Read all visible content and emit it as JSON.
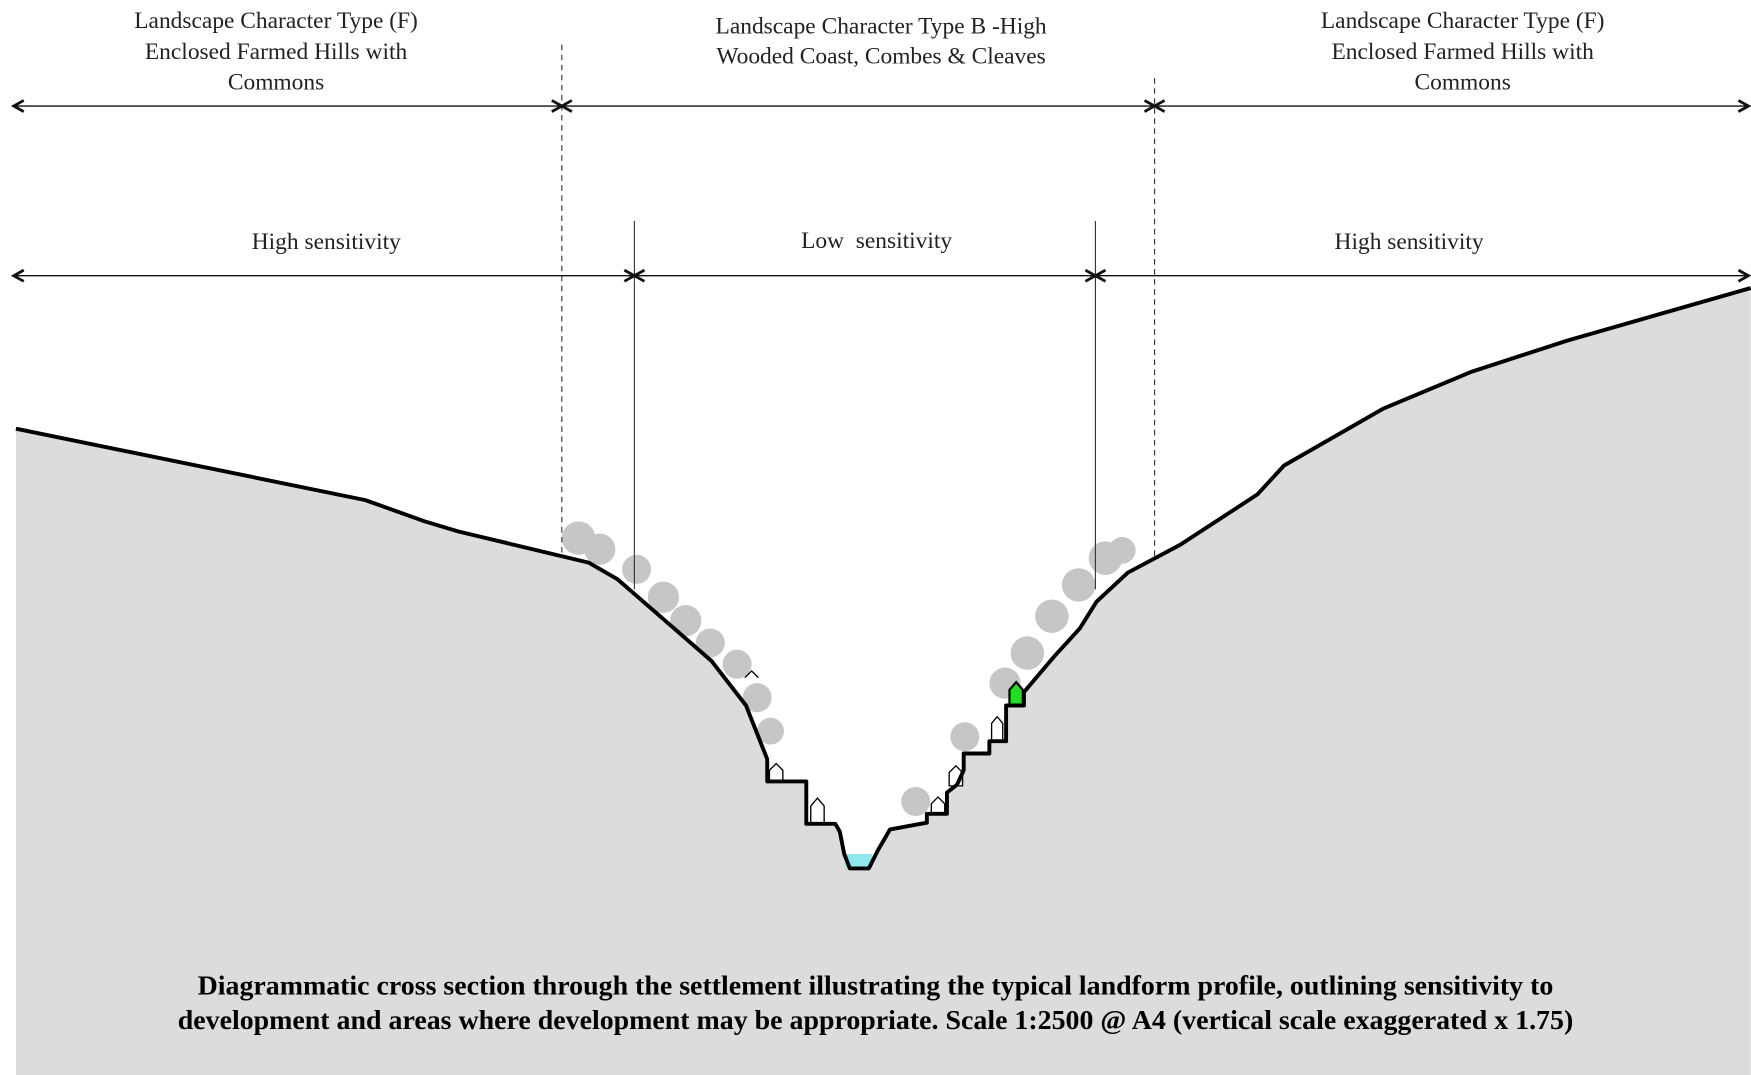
{
  "character_types": [
    {
      "lines": [
        "Landscape Character Type (F)",
        "Enclosed Farmed Hills with",
        "Commons"
      ]
    },
    {
      "lines": [
        "Landscape Character Type B -High",
        "Wooded Coast, Combes & Cleaves"
      ]
    },
    {
      "lines": [
        "Landscape Character Type (F)",
        "Enclosed Farmed Hills with",
        "Commons"
      ]
    }
  ],
  "sensitivity_zones": [
    {
      "label": "High sensitivity"
    },
    {
      "label": "Low  sensitivity"
    },
    {
      "label": "High sensitivity"
    }
  ],
  "caption": {
    "lines": [
      "Diagrammatic cross section through the settlement illustrating the typical landform profile, outlining sensitivity to",
      "development and areas where development may be appropriate. Scale 1:2500 @ A4 (vertical scale exaggerated x 1.75)"
    ]
  }
}
